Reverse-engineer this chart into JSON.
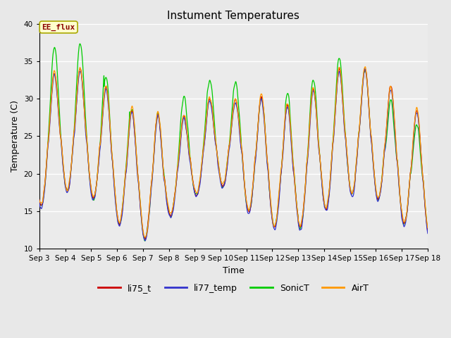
{
  "title": "Instument Temperatures",
  "xlabel": "Time",
  "ylabel": "Temperature (C)",
  "ylim": [
    10,
    40
  ],
  "xlim_days": [
    3,
    18
  ],
  "fig_bg_color": "#e8e8e8",
  "plot_bg_color": "#ebebeb",
  "annotation_text": "EE_flux",
  "annotation_color": "#8b0000",
  "annotation_bg": "#ffffcc",
  "annotation_edge": "#aaa800",
  "lines": {
    "li75_t": {
      "color": "#cc0000",
      "lw": 0.9
    },
    "li77_temp": {
      "color": "#3333cc",
      "lw": 0.9
    },
    "SonicT": {
      "color": "#00cc00",
      "lw": 0.9
    },
    "AirT": {
      "color": "#ff9900",
      "lw": 0.9
    }
  },
  "legend_labels": [
    "li75_t",
    "li77_temp",
    "SonicT",
    "AirT"
  ],
  "legend_colors": [
    "#cc0000",
    "#3333cc",
    "#00cc00",
    "#ff9900"
  ],
  "tick_labels": [
    "Sep 3",
    "Sep 4",
    "Sep 5",
    "Sep 6",
    "Sep 7",
    "Sep 8",
    "Sep 9",
    "Sep 10",
    "Sep 11",
    "Sep 12",
    "Sep 13",
    "Sep 14",
    "Sep 15",
    "Sep 16",
    "Sep 17",
    "Sep 18"
  ],
  "tick_positions": [
    3,
    4,
    5,
    6,
    7,
    8,
    9,
    10,
    11,
    12,
    13,
    14,
    15,
    16,
    17,
    18
  ],
  "ytick_labels": [
    "10",
    "15",
    "20",
    "25",
    "30",
    "35",
    "40"
  ],
  "ytick_positions": [
    10,
    15,
    20,
    25,
    30,
    35,
    40
  ]
}
